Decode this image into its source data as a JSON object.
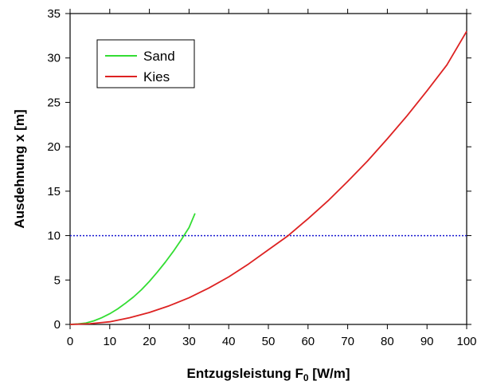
{
  "chart_data": {
    "type": "line",
    "xlabel": "Entzugsleistung F",
    "xlabel_sub": "0",
    "xlabel_unit": " [W/m]",
    "ylabel": "Ausdehnung x [m]",
    "xlim": [
      0,
      100
    ],
    "ylim": [
      0,
      35
    ],
    "xticks": [
      0,
      10,
      20,
      30,
      40,
      50,
      60,
      70,
      80,
      90,
      100
    ],
    "yticks": [
      0,
      5,
      10,
      15,
      20,
      25,
      30,
      35
    ],
    "grid": false,
    "legend_position": "top-left",
    "series": [
      {
        "name": "Sand",
        "color": "#33dd33",
        "x": [
          0,
          2,
          4,
          6,
          8,
          10,
          12,
          14,
          16,
          18,
          20,
          22,
          24,
          26,
          28,
          30,
          31.5
        ],
        "y": [
          0,
          0.05,
          0.15,
          0.4,
          0.75,
          1.2,
          1.75,
          2.4,
          3.1,
          3.9,
          4.85,
          5.9,
          7.0,
          8.2,
          9.5,
          10.9,
          12.5
        ]
      },
      {
        "name": "Kies",
        "color": "#dd2222",
        "x": [
          0,
          5,
          10,
          15,
          20,
          25,
          30,
          35,
          40,
          45,
          50,
          55,
          60,
          65,
          70,
          75,
          80,
          85,
          90,
          95,
          100
        ],
        "y": [
          0,
          0.08,
          0.3,
          0.75,
          1.35,
          2.1,
          3.0,
          4.1,
          5.35,
          6.8,
          8.4,
          10.0,
          11.9,
          13.9,
          16.1,
          18.4,
          20.9,
          23.5,
          26.3,
          29.2,
          33.0
        ]
      }
    ],
    "reference_line": {
      "y": 10,
      "color": "#1a1ad0",
      "style": "dotted"
    }
  }
}
